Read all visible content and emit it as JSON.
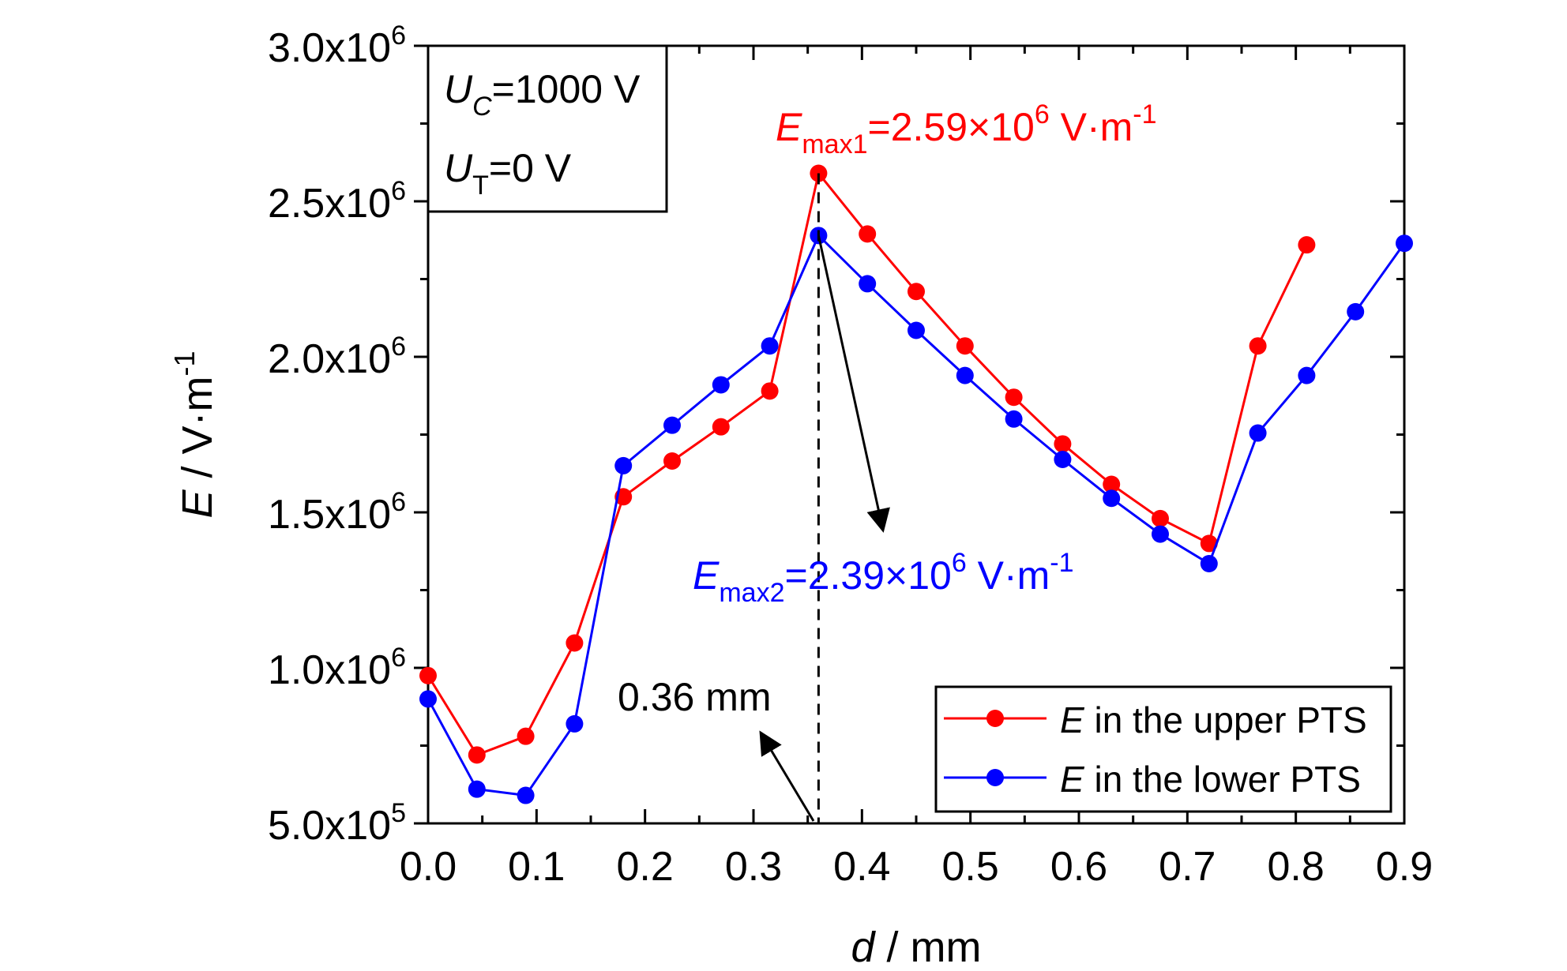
{
  "chart_data": {
    "type": "line",
    "xlabel": "d / mm",
    "ylabel": "E / V·m",
    "ylabel_sup": "-1",
    "xlim": [
      0,
      0.9
    ],
    "ylim": [
      500000,
      3000000
    ],
    "xticks": [
      0.0,
      0.1,
      0.2,
      0.3,
      0.4,
      0.5,
      0.6,
      0.7,
      0.8,
      0.9
    ],
    "xtick_labels": [
      "0.0",
      "0.1",
      "0.2",
      "0.3",
      "0.4",
      "0.5",
      "0.6",
      "0.7",
      "0.8",
      "0.9"
    ],
    "yticks": [
      500000,
      1000000,
      1500000,
      2000000,
      2500000,
      3000000
    ],
    "ytick_labels": [
      {
        "base": "5.0x10",
        "exp": "5"
      },
      {
        "base": "1.0x10",
        "exp": "6"
      },
      {
        "base": "1.5x10",
        "exp": "6"
      },
      {
        "base": "2.0x10",
        "exp": "6"
      },
      {
        "base": "2.5x10",
        "exp": "6"
      },
      {
        "base": "3.0x10",
        "exp": "6"
      }
    ],
    "grid": false,
    "legend_position": "bottom-right",
    "series": [
      {
        "name": "E in the upper PTS",
        "legend_italic": "E",
        "legend_rest": " in the upper PTS",
        "color": "#ff0000",
        "x": [
          0.0,
          0.045,
          0.09,
          0.135,
          0.18,
          0.225,
          0.27,
          0.315,
          0.36,
          0.405,
          0.45,
          0.495,
          0.54,
          0.585,
          0.63,
          0.675,
          0.72,
          0.765,
          0.81
        ],
        "y": [
          975000,
          720000,
          780000,
          1080000,
          1550000,
          1665000,
          1775000,
          1890000,
          2590000,
          2395000,
          2210000,
          2035000,
          1870000,
          1720000,
          1590000,
          1480000,
          1400000,
          2035000,
          2360000
        ]
      },
      {
        "name": "E in the lower PTS",
        "legend_italic": "E",
        "legend_rest": " in the lower PTS",
        "color": "#0000ff",
        "x": [
          0.0,
          0.045,
          0.09,
          0.135,
          0.18,
          0.225,
          0.27,
          0.315,
          0.36,
          0.405,
          0.45,
          0.495,
          0.54,
          0.585,
          0.63,
          0.675,
          0.72,
          0.765,
          0.81,
          0.855,
          0.9
        ],
        "y": [
          900000,
          610000,
          590000,
          820000,
          1650000,
          1780000,
          1910000,
          2035000,
          2390000,
          2235000,
          2085000,
          1940000,
          1800000,
          1670000,
          1545000,
          1430000,
          1335000,
          1755000,
          1940000,
          2145000,
          2365000
        ]
      }
    ],
    "annotations": {
      "conditions": {
        "uc": {
          "var": "U",
          "sub": "C",
          "value": "=1000 V"
        },
        "ut": {
          "var": "U",
          "sub": "T",
          "value": "=0 V"
        }
      },
      "emax1": {
        "var": "E",
        "sub": "max1",
        "text": "=2.59×10",
        "sup": "6",
        "unit": " V·m",
        "unit_sup": "-1",
        "color": "#ff0000"
      },
      "emax2": {
        "var": "E",
        "sub": "max2",
        "text": "=2.39×10",
        "sup": "6",
        "unit": " V·m",
        "unit_sup": "-1",
        "color": "#0000ff"
      },
      "marker_label": "0.36 mm",
      "marker_x": 0.36
    }
  }
}
